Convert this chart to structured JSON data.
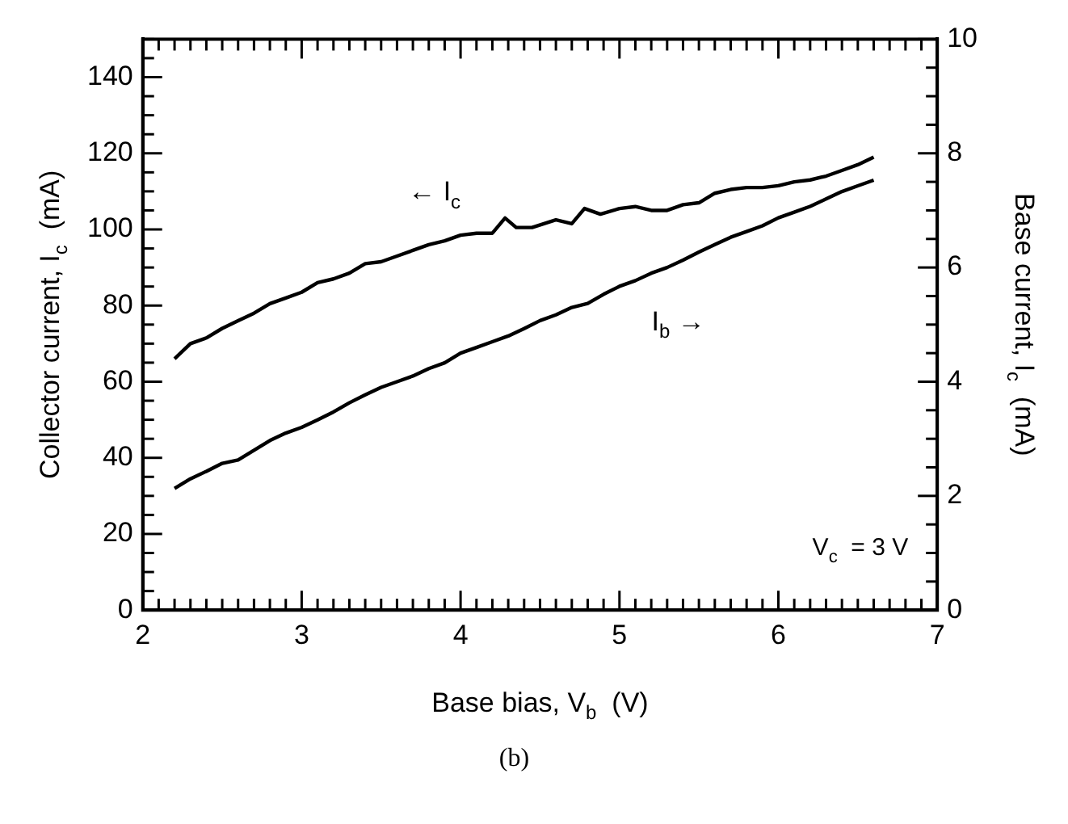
{
  "chart_data": {
    "type": "line",
    "xlabel": "Base bias, V$_{b}$  (V)",
    "ylabel": "Collector current, I$_{c}$  (mA)",
    "y2label": "Base current, I$_{c}$  (mA)",
    "annotations": [
      "V$_{c}$  = 3 V",
      "(b)"
    ],
    "series": [
      {
        "name": "← I$_{c}$",
        "color": "#000000",
        "x": [
          2.2,
          2.3,
          2.4,
          2.5,
          2.6,
          2.7,
          2.8,
          2.9,
          3.0,
          3.1,
          3.2,
          3.3,
          3.4,
          3.5,
          3.6,
          3.7,
          3.8,
          3.9,
          4.0,
          4.1,
          4.2,
          4.28,
          4.35,
          4.45,
          4.6,
          4.7,
          4.78,
          4.88,
          5.0,
          5.1,
          5.2,
          5.3,
          5.4,
          5.5,
          5.6,
          5.7,
          5.8,
          5.9,
          6.0,
          6.1,
          6.2,
          6.3,
          6.4,
          6.5,
          6.6
        ],
        "values": [
          66,
          70,
          71.5,
          74,
          76,
          78,
          80.5,
          82,
          83.5,
          86,
          87,
          88.5,
          91,
          91.5,
          93,
          94.5,
          96,
          97,
          98.5,
          99,
          99,
          103,
          100.5,
          100.5,
          102.5,
          101.5,
          105.5,
          104,
          105.5,
          106,
          105,
          105,
          106.5,
          107,
          109.5,
          110.5,
          111,
          111,
          111.5,
          112.5,
          113,
          114,
          115.5,
          117,
          119
        ]
      },
      {
        "name": "I$_{b}$ →",
        "color": "#000000",
        "axis": "y2",
        "x": [
          2.2,
          2.3,
          2.4,
          2.5,
          2.6,
          2.7,
          2.8,
          2.9,
          3.0,
          3.1,
          3.2,
          3.3,
          3.4,
          3.5,
          3.6,
          3.7,
          3.8,
          3.9,
          4.0,
          4.1,
          4.2,
          4.3,
          4.4,
          4.5,
          4.6,
          4.7,
          4.8,
          4.9,
          5.0,
          5.1,
          5.2,
          5.3,
          5.4,
          5.5,
          5.6,
          5.7,
          5.8,
          5.9,
          6.0,
          6.1,
          6.2,
          6.3,
          6.4,
          6.5,
          6.6
        ],
        "values": [
          2.13,
          2.3,
          2.43,
          2.57,
          2.63,
          2.8,
          2.97,
          3.1,
          3.2,
          3.33,
          3.47,
          3.63,
          3.77,
          3.9,
          4.0,
          4.1,
          4.23,
          4.33,
          4.5,
          4.6,
          4.7,
          4.8,
          4.93,
          5.07,
          5.17,
          5.3,
          5.37,
          5.53,
          5.67,
          5.77,
          5.9,
          6.0,
          6.13,
          6.27,
          6.4,
          6.53,
          6.63,
          6.73,
          6.87,
          6.97,
          7.07,
          7.2,
          7.33,
          7.43,
          7.53
        ]
      }
    ],
    "xlim": [
      2,
      7
    ],
    "xticks": [
      2,
      3,
      4,
      5,
      6,
      7
    ],
    "ylim": [
      0,
      150
    ],
    "yticks": [
      0,
      20,
      40,
      60,
      80,
      100,
      120,
      140
    ],
    "y2lim": [
      0,
      10
    ],
    "y2ticks": [
      0,
      2,
      4,
      6,
      8,
      10
    ],
    "grid": false,
    "marker": "none",
    "line_style": "solid"
  }
}
